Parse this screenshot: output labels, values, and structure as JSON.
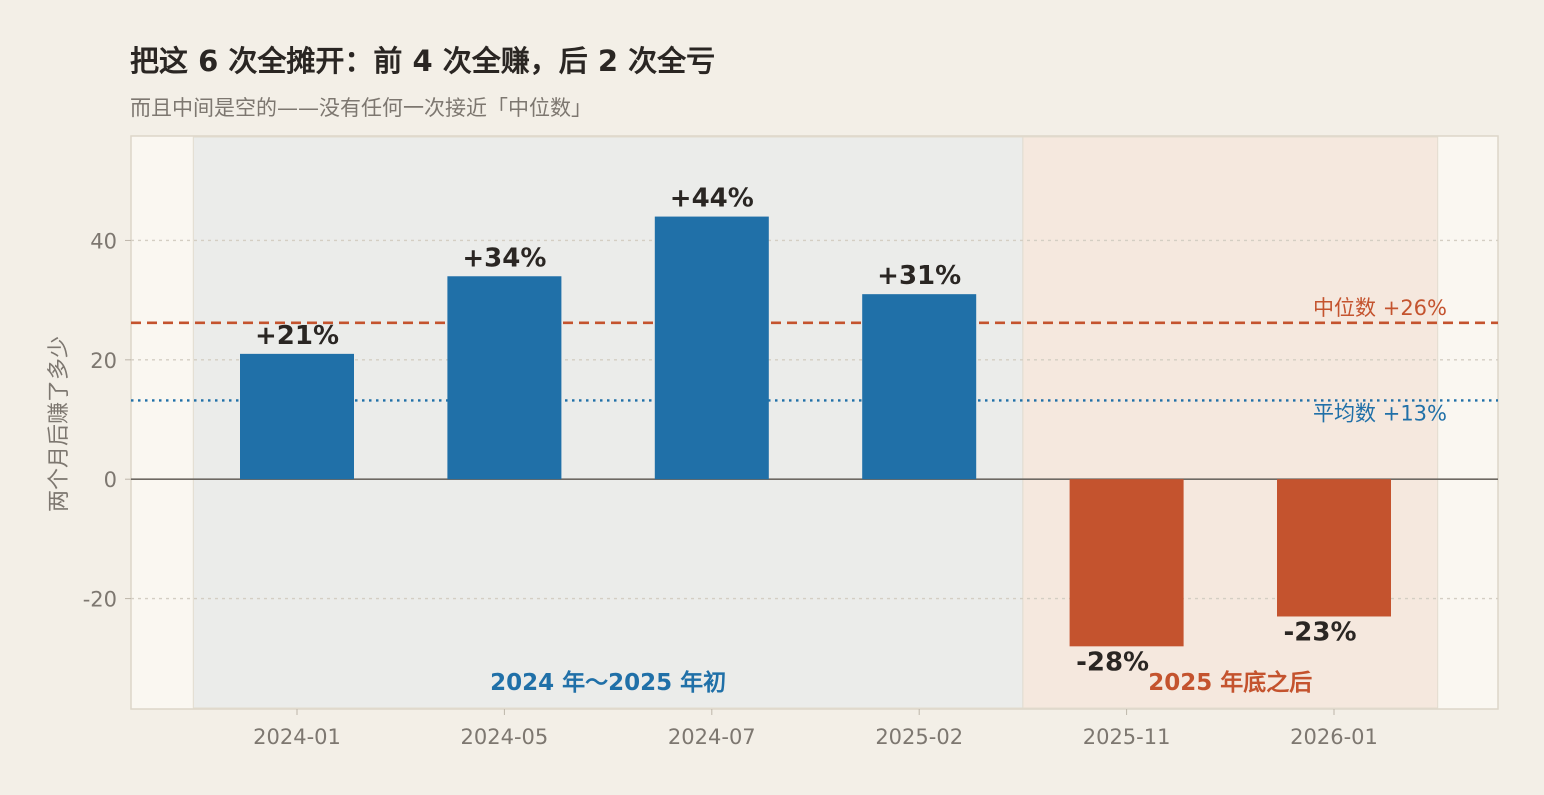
{
  "title": "把这 6 次全摊开：前 4 次全赚，后 2 次全亏",
  "subtitle": "而且中间是空的——没有任何一次接近「中位数」",
  "chart_data": {
    "type": "bar",
    "categories": [
      "2024-01",
      "2024-05",
      "2024-07",
      "2025-02",
      "2025-11",
      "2026-01"
    ],
    "values": [
      21,
      34,
      44,
      31,
      -28,
      -23
    ],
    "data_labels": [
      "+21%",
      "+34%",
      "+44%",
      "+31%",
      "-28%",
      "-23%"
    ],
    "ylabel": "两个月后赚了多少",
    "xlabel": "",
    "ylim": [
      -38.5,
      57.5
    ],
    "yticks": [
      {
        "value": 40,
        "label": "40"
      },
      {
        "value": 20,
        "label": "20"
      },
      {
        "value": 0,
        "label": "0"
      },
      {
        "value": -20,
        "label": "-20"
      }
    ],
    "grid": "horizontal-dotted",
    "reference_lines": [
      {
        "name": "median",
        "value": 26.2,
        "label": "中位数 +26%",
        "style": "dashed",
        "color": "#c4532e"
      },
      {
        "name": "mean",
        "value": 13.2,
        "label": "平均数 +13%",
        "style": "dotted",
        "color": "#2070a8"
      }
    ],
    "regions": [
      {
        "name": "early",
        "label": "2024 年～2025 年初",
        "from_index": 0,
        "to_index": 3,
        "color": "#2070a8"
      },
      {
        "name": "late",
        "label": "2025 年底之后",
        "from_index": 4,
        "to_index": 5,
        "color": "#c4532e"
      }
    ],
    "colors": {
      "positive": "#2070a8",
      "negative": "#c4532e",
      "background": "#f3efe7",
      "plot_background": "#faf7f1",
      "early_region": "#ebecea",
      "late_region": "#f5e8de"
    }
  }
}
